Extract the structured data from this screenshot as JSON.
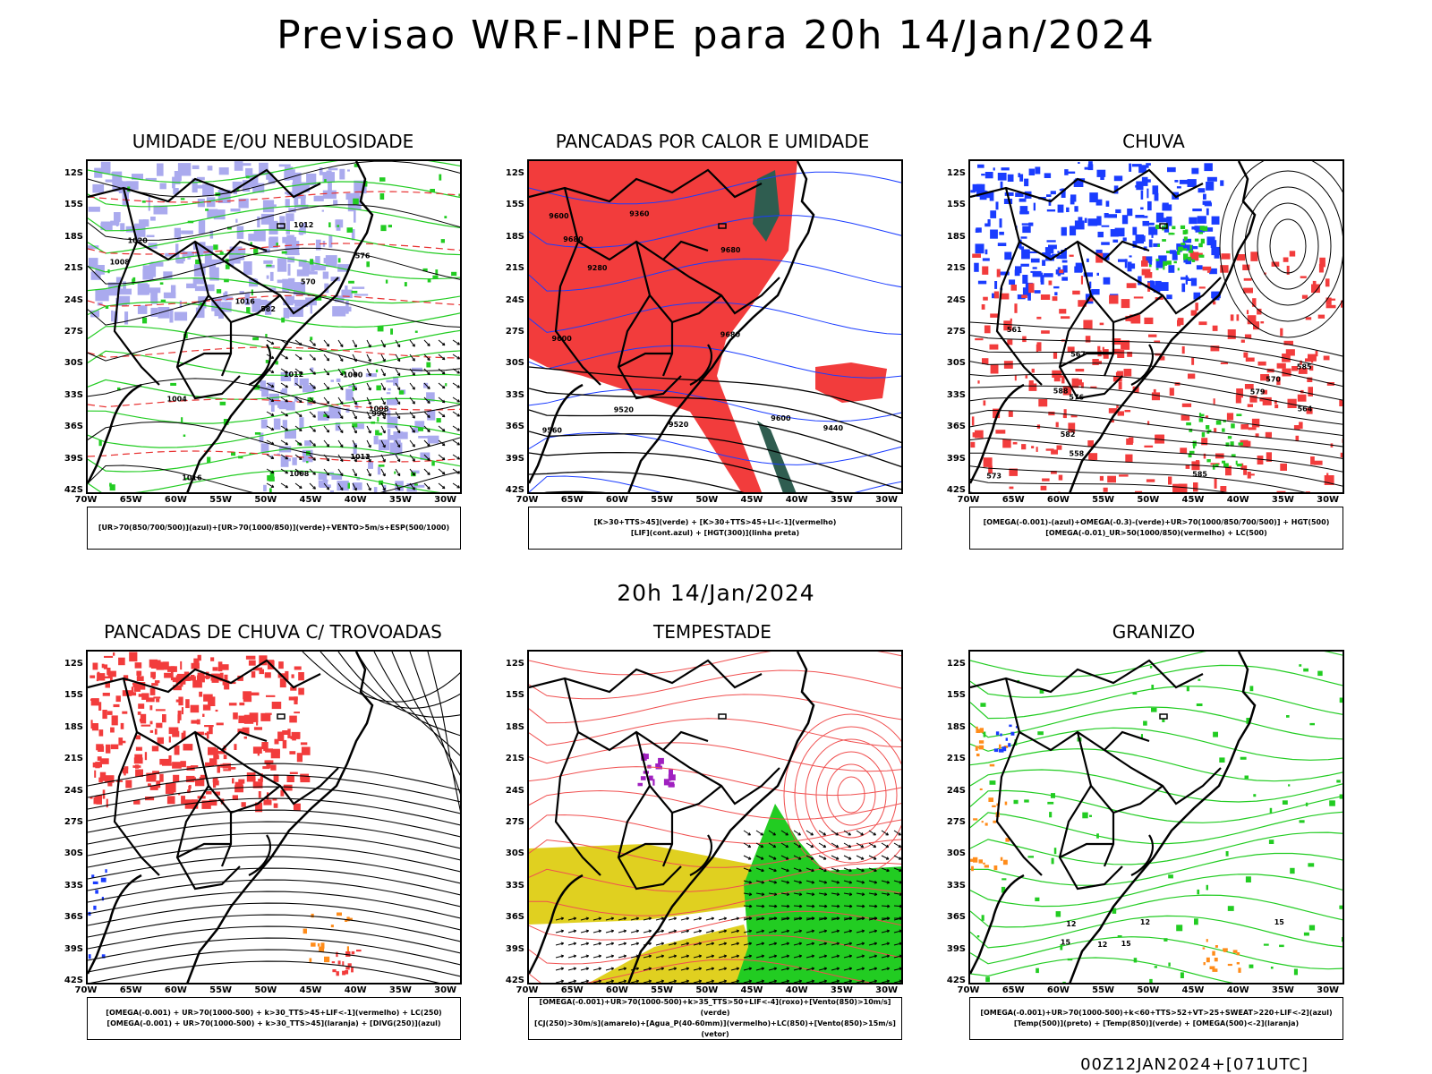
{
  "title": "Previsao WRF-INPE  para 20h 14/Jan/2024",
  "mid_date": "20h 14/Jan/2024",
  "footer": "00Z12JAN2024+[071UTC]",
  "lat_labels": [
    "12S",
    "15S",
    "18S",
    "21S",
    "24S",
    "27S",
    "30S",
    "33S",
    "36S",
    "39S",
    "42S"
  ],
  "lon_labels": [
    "70W",
    "65W",
    "60W",
    "55W",
    "50W",
    "45W",
    "40W",
    "35W",
    "30W"
  ],
  "panels": [
    {
      "title": "UMIDADE E/OU NEBULOSIDADE",
      "legend": [
        "[UR>70(850/700/500)](azul)+[UR>70(1000/850)](verde)+VENTO>5m/s+ESP(500/1000)"
      ],
      "contour_labels": [
        "1012",
        "1012",
        "1016",
        "1008",
        "1004",
        "1012",
        "1008",
        "1020",
        "1016",
        "1008",
        "1000",
        "996",
        "576",
        "582",
        "570"
      ]
    },
    {
      "title": "PANCADAS POR CALOR E UMIDADE",
      "legend": [
        "[K>30+TTS>45](verde) + [K>30+TTS>45+LI<-1](vermelho)",
        "[LIF](cont.azul) + [HGT(300)](linha preta)"
      ],
      "contour_labels": [
        "9680",
        "9600",
        "9680",
        "9560",
        "9680",
        "9600",
        "9520",
        "9440",
        "9360",
        "9280",
        "9520",
        "9600"
      ]
    },
    {
      "title": "CHUVA",
      "legend": [
        "[OMEGA(-0.001)-(azul)+OMEGA(-0.3)-(verde)+UR>70(1000/850/700/500)] + HGT(500)",
        "[OMEGA(-0.01)_UR>50(1000/850)(vermelho) + LC(500)"
      ],
      "contour_labels": [
        "588",
        "585",
        "585",
        "582",
        "579",
        "576",
        "573",
        "570",
        "567",
        "564",
        "561",
        "558"
      ]
    },
    {
      "title": "PANCADAS DE CHUVA C/ TROVOADAS",
      "legend": [
        "[OMEGA(-0.001) + UR>70(1000-500) + k>30_TTS>45+LIF<-1](vermelho) + LC(250)",
        "[OMEGA(-0.001) + UR>70(1000-500) + k>30_TTS>45](laranja) + [DIVG(250)](azul)"
      ],
      "contour_labels": []
    },
    {
      "title": "TEMPESTADE",
      "legend": [
        "[OMEGA(-0.001)+UR>70(1000-500)+k>35_TTS>50+LIF<-4](roxo)+[Vento(850)>10m/s](verde)",
        "[CJ(250)>30m/s](amarelo)+[Agua_P(40-60mm)](vermelho)+LC(850)+[Vento(850)>15m/s](vetor)"
      ],
      "contour_labels": []
    },
    {
      "title": "GRANIZO",
      "legend": [
        "[OMEGA(-0.001)+UR>70(1000-500)+k<60+TTS>52+VT>25+SWEAT>220+LIF<-2](azul)",
        "[Temp(500)](preto) + [Temp(850)](verde) + [OMEGA(500)<-2](laranja)"
      ],
      "contour_labels": [
        "12",
        "15",
        "12",
        "15",
        "12",
        "15"
      ]
    }
  ],
  "colors": {
    "red": "#f23c3c",
    "green": "#22cc22",
    "blue": "#1a3cff",
    "lavender": "#aaaaee",
    "yellow": "#e0d020",
    "purple": "#a020c0",
    "orange": "#ff8c1a",
    "teal": "#2f5d50"
  }
}
